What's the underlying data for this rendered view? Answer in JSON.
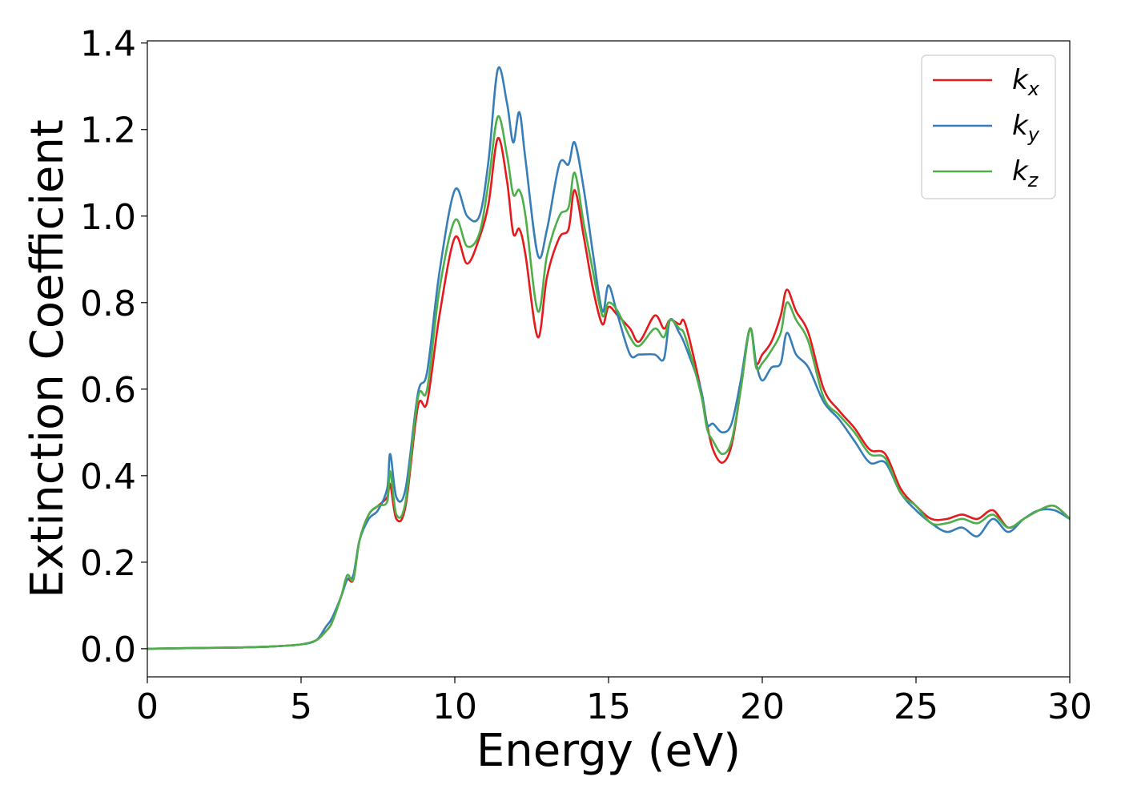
{
  "chart_data": {
    "type": "line",
    "title": "",
    "xlabel": "Energy (eV)",
    "ylabel": "Extinction Coefficient",
    "xlim": [
      0,
      30
    ],
    "ylim": [
      -0.065,
      1.405
    ],
    "xticks": [
      0,
      5,
      10,
      15,
      20,
      25,
      30
    ],
    "yticks": [
      0.0,
      0.2,
      0.4,
      0.6,
      0.8,
      1.0,
      1.2,
      1.4
    ],
    "grid": false,
    "legend_position": "top-right",
    "x": [
      0,
      1,
      2,
      3,
      4,
      5,
      5.5,
      5.8,
      6.0,
      6.3,
      6.5,
      6.7,
      6.9,
      7.2,
      7.5,
      7.8,
      7.9,
      8.1,
      8.4,
      8.8,
      9.1,
      9.5,
      10.0,
      10.4,
      10.8,
      11.1,
      11.4,
      11.7,
      11.9,
      12.1,
      12.3,
      12.7,
      13.0,
      13.4,
      13.7,
      13.9,
      14.2,
      14.5,
      14.8,
      15.0,
      15.3,
      15.7,
      16.0,
      16.5,
      16.8,
      17.0,
      17.3,
      17.5,
      18.0,
      18.2,
      18.4,
      18.7,
      19.0,
      19.3,
      19.6,
      19.8,
      20.0,
      20.3,
      20.6,
      20.8,
      21.1,
      21.5,
      22.0,
      22.5,
      23.0,
      23.5,
      24.0,
      24.5,
      25.0,
      25.5,
      26.0,
      26.5,
      27.0,
      27.5,
      28.0,
      28.5,
      29.0,
      29.5,
      30.0
    ],
    "series": [
      {
        "name": "k",
        "subscript": "x",
        "color": "#e41a1c",
        "values": [
          0.0,
          0.001,
          0.002,
          0.003,
          0.005,
          0.01,
          0.02,
          0.04,
          0.06,
          0.12,
          0.16,
          0.16,
          0.25,
          0.31,
          0.33,
          0.35,
          0.38,
          0.3,
          0.33,
          0.56,
          0.57,
          0.77,
          0.95,
          0.89,
          0.95,
          1.03,
          1.18,
          1.08,
          0.96,
          0.97,
          0.91,
          0.72,
          0.86,
          0.95,
          0.97,
          1.06,
          0.95,
          0.83,
          0.75,
          0.79,
          0.77,
          0.74,
          0.71,
          0.77,
          0.74,
          0.76,
          0.75,
          0.75,
          0.6,
          0.52,
          0.46,
          0.43,
          0.47,
          0.6,
          0.74,
          0.66,
          0.68,
          0.71,
          0.77,
          0.83,
          0.78,
          0.73,
          0.6,
          0.55,
          0.51,
          0.46,
          0.45,
          0.37,
          0.33,
          0.3,
          0.3,
          0.31,
          0.3,
          0.32,
          0.28,
          0.3,
          0.32,
          0.33,
          0.3
        ]
      },
      {
        "name": "k",
        "subscript": "y",
        "color": "#377eb8",
        "values": [
          0.0,
          0.001,
          0.002,
          0.003,
          0.005,
          0.01,
          0.02,
          0.05,
          0.07,
          0.12,
          0.16,
          0.17,
          0.25,
          0.3,
          0.32,
          0.37,
          0.45,
          0.35,
          0.37,
          0.59,
          0.64,
          0.87,
          1.06,
          1.0,
          1.0,
          1.13,
          1.34,
          1.26,
          1.17,
          1.24,
          1.13,
          0.91,
          0.97,
          1.12,
          1.12,
          1.17,
          1.06,
          0.91,
          0.78,
          0.84,
          0.77,
          0.68,
          0.68,
          0.68,
          0.67,
          0.76,
          0.73,
          0.7,
          0.6,
          0.52,
          0.52,
          0.5,
          0.52,
          0.62,
          0.74,
          0.66,
          0.62,
          0.65,
          0.66,
          0.73,
          0.68,
          0.65,
          0.57,
          0.53,
          0.48,
          0.43,
          0.43,
          0.36,
          0.32,
          0.29,
          0.27,
          0.28,
          0.26,
          0.3,
          0.27,
          0.3,
          0.32,
          0.32,
          0.3
        ]
      },
      {
        "name": "k",
        "subscript": "z",
        "color": "#4daf4a",
        "values": [
          0.0,
          0.001,
          0.002,
          0.003,
          0.005,
          0.01,
          0.02,
          0.04,
          0.06,
          0.12,
          0.17,
          0.16,
          0.25,
          0.31,
          0.33,
          0.34,
          0.41,
          0.31,
          0.34,
          0.58,
          0.6,
          0.83,
          0.99,
          0.93,
          0.96,
          1.08,
          1.23,
          1.14,
          1.05,
          1.06,
          1.0,
          0.78,
          0.91,
          1.0,
          1.02,
          1.1,
          0.98,
          0.87,
          0.77,
          0.8,
          0.78,
          0.72,
          0.7,
          0.74,
          0.72,
          0.76,
          0.74,
          0.72,
          0.59,
          0.51,
          0.48,
          0.45,
          0.48,
          0.6,
          0.74,
          0.65,
          0.66,
          0.69,
          0.73,
          0.8,
          0.76,
          0.71,
          0.58,
          0.54,
          0.5,
          0.45,
          0.44,
          0.36,
          0.33,
          0.29,
          0.29,
          0.3,
          0.29,
          0.31,
          0.28,
          0.3,
          0.32,
          0.33,
          0.3
        ]
      }
    ]
  }
}
